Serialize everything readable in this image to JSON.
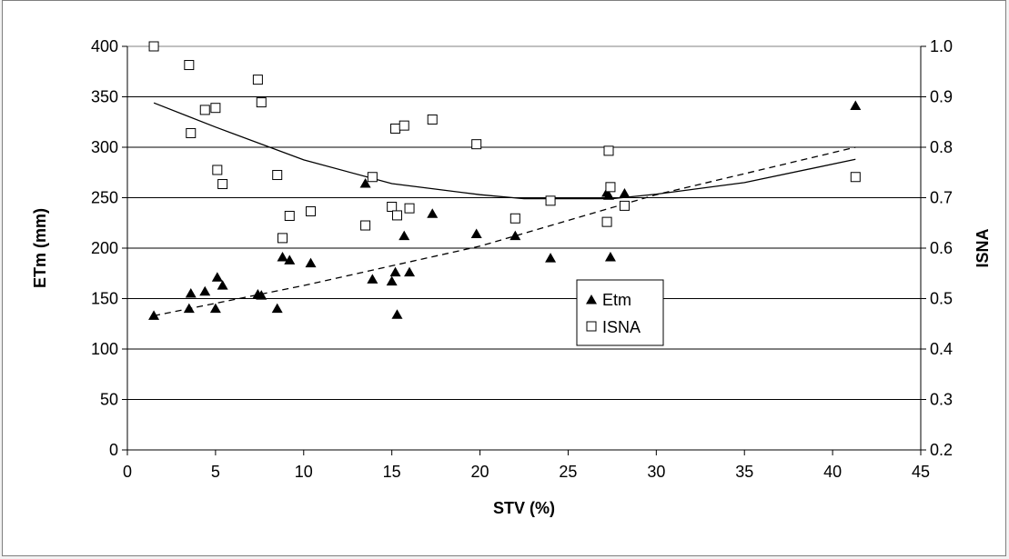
{
  "chart_data": {
    "type": "scatter",
    "xlabel": "STV (%)",
    "ylabel": "ETm (mm)",
    "y2label": "ISNA",
    "xlim": [
      0,
      45
    ],
    "ylim": [
      0,
      400
    ],
    "y2lim": [
      0.2,
      1.0
    ],
    "xticks": [
      "0",
      "5",
      "10",
      "15",
      "20",
      "25",
      "30",
      "35",
      "40",
      "45"
    ],
    "yticks": [
      "0",
      "50",
      "100",
      "150",
      "200",
      "250",
      "300",
      "350",
      "400"
    ],
    "y2ticks": [
      "0.2",
      "0.3",
      "0.4",
      "0.5",
      "0.6",
      "0.7",
      "0.8",
      "0.9",
      "1.0"
    ],
    "grid": "horizontal",
    "legend_position": "center-right",
    "series": [
      {
        "name": "Etm",
        "axis": "left",
        "marker": "filled-triangle",
        "color": "#000000",
        "points": [
          [
            1.5,
            133
          ],
          [
            3.5,
            140
          ],
          [
            3.6,
            155
          ],
          [
            4.4,
            157
          ],
          [
            5.0,
            140
          ],
          [
            5.1,
            171
          ],
          [
            5.4,
            163
          ],
          [
            7.4,
            154
          ],
          [
            7.6,
            153
          ],
          [
            8.5,
            140
          ],
          [
            8.8,
            191
          ],
          [
            9.2,
            188
          ],
          [
            10.4,
            185
          ],
          [
            13.5,
            264
          ],
          [
            13.9,
            169
          ],
          [
            15.0,
            167
          ],
          [
            15.2,
            176
          ],
          [
            15.3,
            134
          ],
          [
            15.7,
            212
          ],
          [
            16.0,
            176
          ],
          [
            17.3,
            234
          ],
          [
            19.8,
            214
          ],
          [
            22.0,
            212
          ],
          [
            24.0,
            190
          ],
          [
            27.2,
            255
          ],
          [
            27.3,
            252
          ],
          [
            27.4,
            191
          ],
          [
            28.2,
            254
          ],
          [
            41.3,
            341
          ]
        ]
      },
      {
        "name": "ISNA",
        "axis": "right",
        "marker": "open-square",
        "color": "#000000",
        "points": [
          [
            1.5,
            1.0
          ],
          [
            3.5,
            0.963
          ],
          [
            3.6,
            0.828
          ],
          [
            4.4,
            0.874
          ],
          [
            5.0,
            0.878
          ],
          [
            5.1,
            0.755
          ],
          [
            5.4,
            0.727
          ],
          [
            7.4,
            0.934
          ],
          [
            7.6,
            0.889
          ],
          [
            8.5,
            0.745
          ],
          [
            8.8,
            0.62
          ],
          [
            9.2,
            0.664
          ],
          [
            10.4,
            0.673
          ],
          [
            13.5,
            0.645
          ],
          [
            13.9,
            0.741
          ],
          [
            15.0,
            0.682
          ],
          [
            15.2,
            0.837
          ],
          [
            15.3,
            0.665
          ],
          [
            15.7,
            0.843
          ],
          [
            16.0,
            0.679
          ],
          [
            17.3,
            0.855
          ],
          [
            19.8,
            0.806
          ],
          [
            22.0,
            0.659
          ],
          [
            24.0,
            0.694
          ],
          [
            27.2,
            0.652
          ],
          [
            27.3,
            0.793
          ],
          [
            27.4,
            0.721
          ],
          [
            28.2,
            0.684
          ],
          [
            41.3,
            0.741
          ]
        ]
      }
    ],
    "trendlines": [
      {
        "series": "Etm",
        "axis": "left",
        "style": "dashed",
        "points": [
          [
            1.5,
            133
          ],
          [
            10,
            163
          ],
          [
            20,
            202
          ],
          [
            30,
            253
          ],
          [
            41.3,
            300
          ]
        ]
      },
      {
        "series": "ISNA",
        "axis": "right",
        "style": "solid",
        "points": [
          [
            1.5,
            0.888
          ],
          [
            5,
            0.84
          ],
          [
            10,
            0.775
          ],
          [
            15,
            0.728
          ],
          [
            20,
            0.706
          ],
          [
            22.5,
            0.698
          ],
          [
            25,
            0.698
          ],
          [
            27.5,
            0.698
          ],
          [
            30,
            0.707
          ],
          [
            35,
            0.73
          ],
          [
            41.3,
            0.776
          ]
        ]
      }
    ]
  }
}
